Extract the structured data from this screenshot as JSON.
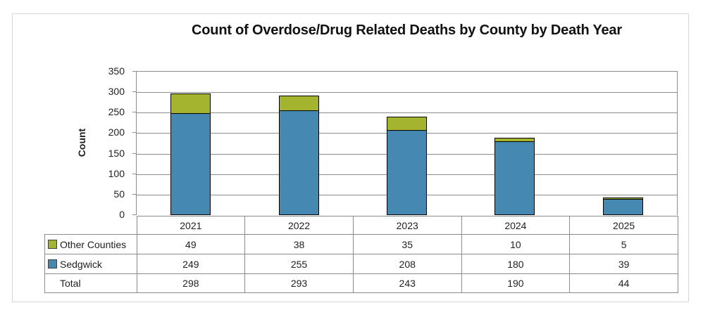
{
  "chart_data": {
    "type": "bar",
    "stacked": true,
    "title": "Count of Overdose/Drug Related Deaths by County by Death Year",
    "xlabel": "",
    "ylabel": "Count",
    "categories": [
      "2021",
      "2022",
      "2023",
      "2024",
      "2025"
    ],
    "series": [
      {
        "name": "Other Counties",
        "color": "#a4b42e",
        "values": [
          49,
          38,
          35,
          10,
          5
        ]
      },
      {
        "name": "Sedgwick",
        "color": "#4589b2",
        "values": [
          249,
          255,
          208,
          180,
          39
        ]
      }
    ],
    "totals": {
      "label": "Total",
      "values": [
        298,
        293,
        243,
        190,
        44
      ]
    },
    "ylim": [
      0,
      350
    ],
    "yticks": [
      0,
      50,
      100,
      150,
      200,
      250,
      300,
      350
    ],
    "grid": "horizontal",
    "legend_position": "left-of-data-table"
  },
  "colors": {
    "bar_blue": "#4589b2",
    "bar_green": "#a4b42e",
    "axis_gray": "#8c8c8c",
    "frame_gray": "#d6d6d6",
    "bar_outline": "#000000",
    "text": "#1f1f1f"
  }
}
